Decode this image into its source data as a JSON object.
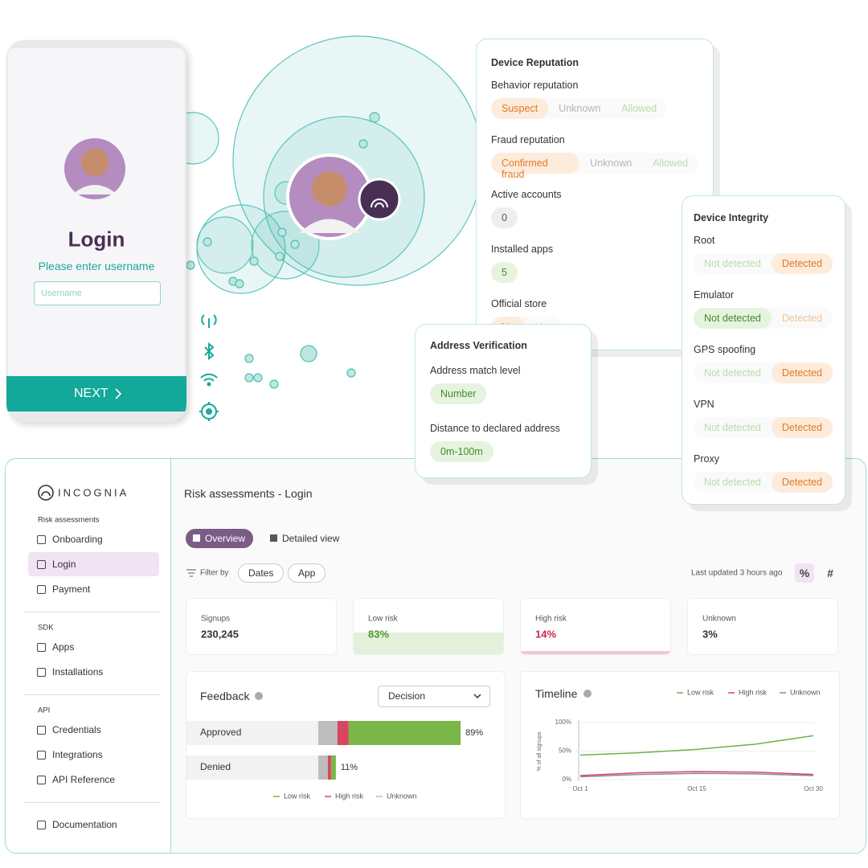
{
  "phone": {
    "title": "Login",
    "prompt": "Please enter username",
    "placeholder": "Username",
    "button": "NEXT"
  },
  "device_reputation": {
    "title": "Device Reputation",
    "rows": [
      {
        "label": "Behavior reputation",
        "options": [
          "Suspect",
          "Unknown",
          "Allowed"
        ],
        "tones": [
          "orange",
          "grey",
          "green"
        ],
        "selected": 0
      },
      {
        "label": "Fraud reputation",
        "options": [
          "Confirmed fraud",
          "Unknown",
          "Allowed"
        ],
        "tones": [
          "orange",
          "grey",
          "green"
        ],
        "selected": 0
      },
      {
        "label": "Active accounts",
        "options": [
          "0"
        ],
        "tones": [
          "grey"
        ],
        "selected": 0
      },
      {
        "label": "Installed apps",
        "options": [
          "5"
        ],
        "tones": [
          "green"
        ],
        "selected": 0
      },
      {
        "label": "Official store",
        "options": [
          "No",
          "Yes"
        ],
        "tones": [
          "orange",
          "green"
        ],
        "selected": 0
      }
    ]
  },
  "address_verification": {
    "title": "Address Verification",
    "rows": [
      {
        "label": "Address match level",
        "options": [
          "Number"
        ],
        "tones": [
          "green"
        ],
        "selected": 0
      },
      {
        "label": "Distance to declared address",
        "options": [
          "0m-100m"
        ],
        "tones": [
          "green"
        ],
        "selected": 0
      }
    ]
  },
  "device_integrity": {
    "title": "Device Integrity",
    "rows": [
      {
        "label": "Root",
        "options": [
          "Not detected",
          "Detected"
        ],
        "tones": [
          "green",
          "orange"
        ],
        "selected": 1
      },
      {
        "label": "Emulator",
        "options": [
          "Not detected",
          "Detected"
        ],
        "tones": [
          "green",
          "orange"
        ],
        "selected": 0
      },
      {
        "label": "GPS spoofing",
        "options": [
          "Not detected",
          "Detected"
        ],
        "tones": [
          "green",
          "orange"
        ],
        "selected": 1
      },
      {
        "label": "VPN",
        "options": [
          "Not detected",
          "Detected"
        ],
        "tones": [
          "green",
          "orange"
        ],
        "selected": 1
      },
      {
        "label": "Proxy",
        "options": [
          "Not detected",
          "Detected"
        ],
        "tones": [
          "green",
          "orange"
        ],
        "selected": 1
      }
    ]
  },
  "dashboard": {
    "logo": "INCOGNIA",
    "sections": [
      {
        "heading": "Risk assessments",
        "items": [
          "Onboarding",
          "Login",
          "Payment"
        ],
        "selected": 1
      },
      {
        "heading": "SDK",
        "items": [
          "Apps",
          "Installations"
        ]
      },
      {
        "heading": "API",
        "items": [
          "Credentials",
          "Integrations",
          "API Reference"
        ]
      },
      {
        "items": [
          "Documentation"
        ]
      }
    ],
    "title": "Risk assessments - Login",
    "tabs": [
      "Overview",
      "Detailed view"
    ],
    "selected_tab": 0,
    "filter_label": "Filter by",
    "filters": [
      "Dates",
      "App"
    ],
    "updated": "Last updated 3 hours ago",
    "toggles": [
      "%",
      "#"
    ],
    "selected_toggle": 0,
    "stats": [
      {
        "label": "Signups",
        "value": "230,245"
      },
      {
        "label": "Low risk",
        "value": "83%",
        "tone": "green"
      },
      {
        "label": "High risk",
        "value": "14%",
        "tone": "red"
      },
      {
        "label": "Unknown",
        "value": "3%"
      }
    ],
    "feedback": {
      "type": "bar",
      "title": "Feedback",
      "dropdown": "Decision",
      "categories": [
        "Approved",
        "Denied"
      ],
      "values": [
        89,
        11
      ],
      "value_labels": [
        "89%",
        "11%"
      ],
      "series": [
        {
          "name": "Low risk",
          "color": "#7ab648",
          "values": [
            70,
            3
          ]
        },
        {
          "name": "High risk",
          "color": "#d9455f",
          "values": [
            7,
            2
          ]
        },
        {
          "name": "Unknown",
          "color": "#bdbdbd",
          "values": [
            12,
            6
          ]
        }
      ],
      "xlim": [
        0,
        100
      ]
    },
    "timeline": {
      "type": "line",
      "title": "Timeline",
      "ylabel": "% of all signups",
      "categories": [
        "Oct 1",
        null,
        "Oct 15",
        null,
        "Oct 30"
      ],
      "series": [
        {
          "name": "Low risk",
          "color": "#6cb24a",
          "values": [
            43,
            47,
            53,
            62,
            77
          ]
        },
        {
          "name": "High risk",
          "color": "#d9455f",
          "values": [
            7,
            12,
            14,
            13,
            9
          ]
        },
        {
          "name": "Unknown",
          "color": "#8a8a8a",
          "values": [
            5,
            9,
            11,
            10,
            7
          ]
        }
      ],
      "ylim": [
        0,
        100
      ],
      "yticks": [
        {
          "value": 0,
          "label": "0%"
        },
        {
          "value": 50,
          "label": "50%"
        },
        {
          "value": 100,
          "label": "100%"
        }
      ]
    }
  }
}
